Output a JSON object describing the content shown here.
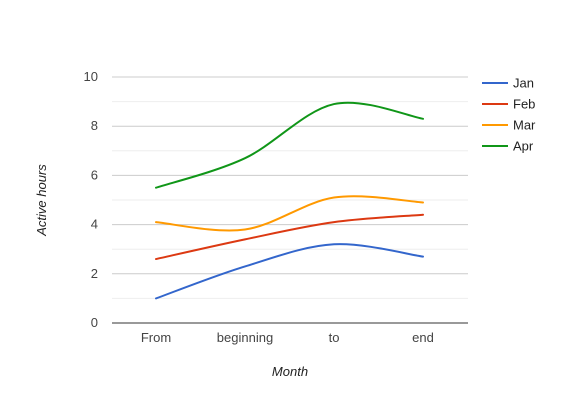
{
  "chart_data": {
    "type": "line",
    "title": "",
    "xlabel": "Month",
    "ylabel": "Active hours",
    "categories": [
      "From",
      "beginning",
      "to",
      "end"
    ],
    "ylim": [
      0,
      10
    ],
    "yticks": [
      0,
      2,
      4,
      6,
      8,
      10
    ],
    "grid": true,
    "minor_grid": true,
    "legend_position": "right",
    "series": [
      {
        "name": "Jan",
        "color": "#3366cc",
        "values": [
          1.0,
          2.3,
          3.2,
          2.7
        ]
      },
      {
        "name": "Feb",
        "color": "#dc3912",
        "values": [
          2.6,
          3.4,
          4.1,
          4.4
        ]
      },
      {
        "name": "Mar",
        "color": "#ff9900",
        "values": [
          4.1,
          3.8,
          5.1,
          4.9
        ]
      },
      {
        "name": "Apr",
        "color": "#109618",
        "values": [
          5.5,
          6.7,
          8.9,
          8.3
        ]
      }
    ]
  }
}
